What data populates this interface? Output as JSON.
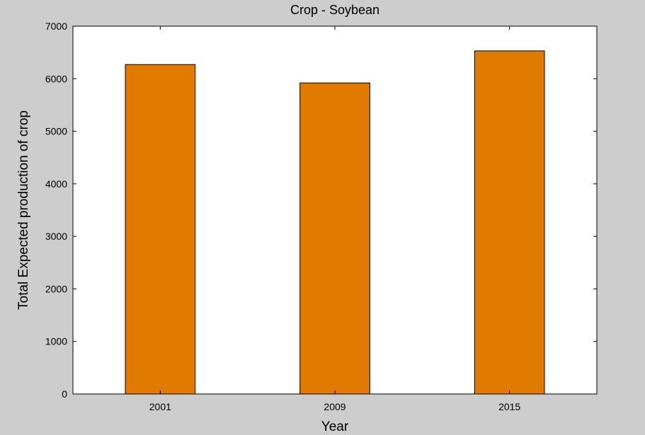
{
  "chart_data": {
    "type": "bar",
    "title": "Crop - Soybean",
    "xlabel": "Year",
    "ylabel": "Total Expected production of crop",
    "categories": [
      "2001",
      "2009",
      "2015"
    ],
    "values": [
      6270,
      5920,
      6530
    ],
    "ylim": [
      0,
      7000
    ],
    "yticks": [
      0,
      1000,
      2000,
      3000,
      4000,
      5000,
      6000,
      7000
    ],
    "grid": false,
    "colors": {
      "bar_fill": "#e07b00",
      "bar_edge": "#000000",
      "plot_background": "#ffffff",
      "figure_background": "#cdcdcd"
    }
  }
}
